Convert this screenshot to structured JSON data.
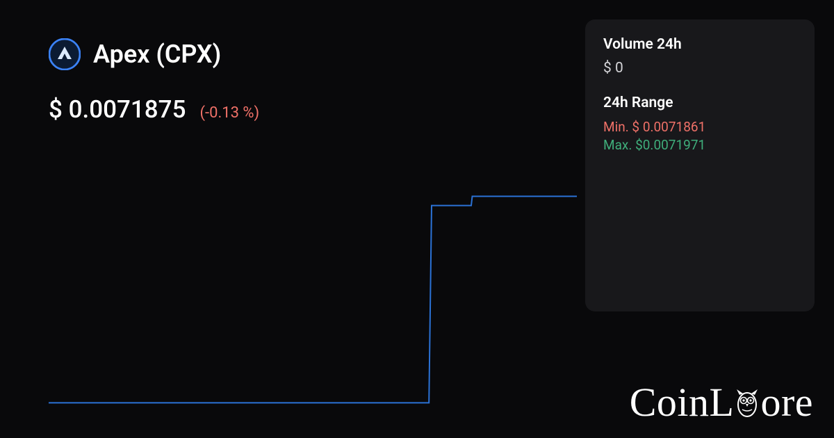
{
  "coin": {
    "name": "Apex (CPX)",
    "icon": {
      "ring_color": "#3b82f6",
      "bg_color": "#0b1b33",
      "triangle_color": "#dbeafe"
    }
  },
  "price": {
    "value": "$ 0.0071875",
    "change_text": "(-0.13 %)",
    "change_color": "#f07168"
  },
  "panel": {
    "volume_label": "Volume 24h",
    "volume_value": "$ 0",
    "range_label": "24h Range",
    "range_min": "Min. $ 0.0071861",
    "range_min_color": "#f07168",
    "range_max": "Max. $0.0071971",
    "range_max_color": "#3fae7b",
    "bg_color": "#18181b"
  },
  "chart": {
    "type": "line",
    "stroke_color": "#2b72d6",
    "stroke_width": 2,
    "background_color": "transparent",
    "x_range": [
      0,
      100
    ],
    "y_range": [
      0,
      100
    ],
    "points": [
      [
        0,
        2
      ],
      [
        72,
        2
      ],
      [
        72.5,
        88
      ],
      [
        80,
        88
      ],
      [
        80.2,
        92
      ],
      [
        100,
        92
      ]
    ]
  },
  "brand": {
    "prefix": "CoinL",
    "suffix": "ore",
    "owl_color": "#ffffff"
  },
  "colors": {
    "page_bg": "#09090b",
    "text_primary": "#ffffff",
    "text_muted": "#d4d4d8"
  }
}
